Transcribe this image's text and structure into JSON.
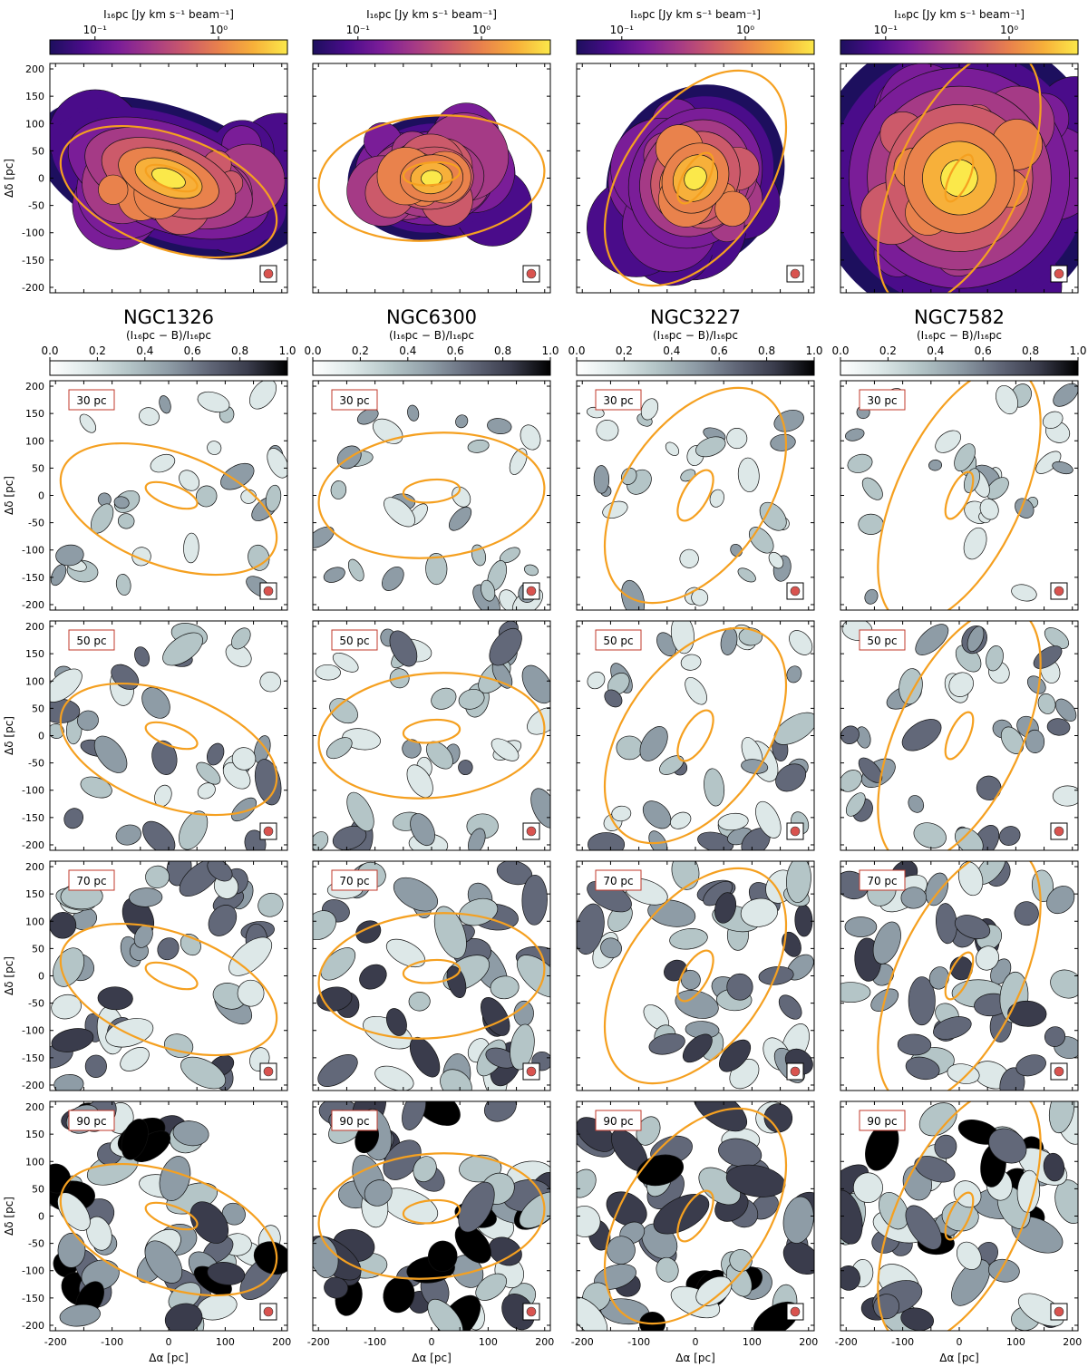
{
  "figure": {
    "top_colorbar_label": "I₁₆pc [Jy km s⁻¹ beam⁻¹]",
    "top_colorbar_ticks": [
      "10⁻¹",
      "10⁰"
    ],
    "bottom_colorbar_label": "(I₁₆pc − B)/I₁₆pc",
    "bottom_colorbar_ticks": [
      "0.0",
      "0.2",
      "0.4",
      "0.6",
      "0.8",
      "1.0"
    ],
    "ylabel": "Δδ [pc]",
    "xlabel": "Δα [pc]",
    "axis_ticks": [
      "-200",
      "-100",
      "0",
      "100",
      "200"
    ],
    "y_ticks": [
      "200",
      "150",
      "100",
      "50",
      "0",
      "-50",
      "-100",
      "-150",
      "-200"
    ],
    "galaxies": [
      "NGC1326",
      "NGC6300",
      "NGC3227",
      "NGC7582"
    ],
    "scales": [
      "30 pc",
      "50 pc",
      "70 pc",
      "90 pc"
    ]
  },
  "colors": {
    "ellipse": "#f5a020",
    "beam": "#d9534f",
    "scale_box_border": "#c0392b",
    "inferno": [
      "#1d0f5e",
      "#4a0c8a",
      "#7a1d98",
      "#a53a86",
      "#cc5a6a",
      "#e9824c",
      "#f7b03a",
      "#fbe84a"
    ],
    "bone": [
      "#ffffff",
      "#dde8e8",
      "#b4c5c7",
      "#8e9ca6",
      "#626879",
      "#3a3c4c",
      "#000000"
    ]
  },
  "chart_data": {
    "type": "heatmap",
    "xlim": [
      -210,
      210
    ],
    "ylim": [
      -210,
      210
    ],
    "top_colorbar_scale": "log",
    "bottom_colorbar_range": [
      0.0,
      1.0
    ],
    "panels": [
      {
        "galaxy": "NGC1326",
        "outer_ellipse": {
          "cx": 0,
          "cy": -25,
          "a": 200,
          "b": 100,
          "pa_deg": -20
        },
        "inner_ellipse": {
          "cx": 5,
          "cy": 0,
          "a": 48,
          "b": 18,
          "pa_deg": -20
        }
      },
      {
        "galaxy": "NGC6300",
        "outer_ellipse": {
          "cx": 0,
          "cy": 0,
          "a": 200,
          "b": 110,
          "pa_deg": 5
        },
        "inner_ellipse": {
          "cx": 0,
          "cy": 8,
          "a": 50,
          "b": 20,
          "pa_deg": 5
        }
      },
      {
        "galaxy": "NGC3227",
        "outer_ellipse": {
          "cx": 0,
          "cy": 0,
          "a": 215,
          "b": 125,
          "pa_deg": 55
        },
        "inner_ellipse": {
          "cx": 0,
          "cy": 0,
          "a": 50,
          "b": 22,
          "pa_deg": 60
        }
      },
      {
        "galaxy": "NGC7582",
        "outer_ellipse": {
          "cx": 0,
          "cy": 0,
          "a": 245,
          "b": 110,
          "pa_deg": 65
        },
        "inner_ellipse": {
          "cx": 0,
          "cy": 0,
          "a": 45,
          "b": 17,
          "pa_deg": 65
        }
      }
    ]
  }
}
